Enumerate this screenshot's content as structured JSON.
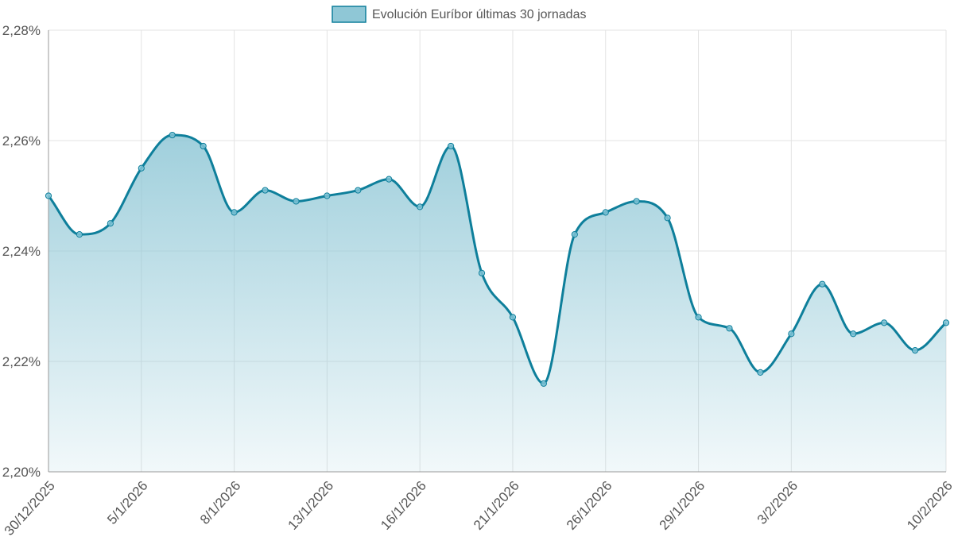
{
  "chart_data": {
    "type": "area",
    "legend": {
      "label": "Evolución Euríbor últimas 30 jornadas",
      "position": "top-center"
    },
    "x": [
      "30/12/2025",
      "",
      "",
      "5/1/2026",
      "",
      "",
      "8/1/2026",
      "",
      "",
      "13/1/2026",
      "",
      "",
      "16/1/2026",
      "",
      "",
      "21/1/2026",
      "",
      "",
      "26/1/2026",
      "",
      "",
      "29/1/2026",
      "",
      "",
      "3/2/2026",
      "",
      "",
      "",
      "",
      "10/2/2026"
    ],
    "x_tick_labels": [
      "30/12/2025",
      "5/1/2026",
      "8/1/2026",
      "13/1/2026",
      "16/1/2026",
      "21/1/2026",
      "26/1/2026",
      "29/1/2026",
      "3/2/2026",
      "10/2/2026"
    ],
    "series": [
      {
        "name": "Evolución Euríbor últimas 30 jornadas",
        "values": [
          2.25,
          2.243,
          2.245,
          2.255,
          2.261,
          2.259,
          2.247,
          2.251,
          2.249,
          2.25,
          2.251,
          2.253,
          2.248,
          2.259,
          2.236,
          2.228,
          2.216,
          2.243,
          2.247,
          2.249,
          2.246,
          2.228,
          2.226,
          2.218,
          2.225,
          2.234,
          2.225,
          2.227,
          2.222,
          2.227
        ]
      }
    ],
    "ylim": [
      2.2,
      2.28
    ],
    "y_ticks": [
      2.2,
      2.22,
      2.24,
      2.26,
      2.28
    ],
    "y_tick_labels": [
      "2,20%",
      "2,22%",
      "2,24%",
      "2,26%",
      "2,28%"
    ],
    "grid": true,
    "colors": {
      "line": "#0e7f9b",
      "fill_top": "#8fc7d6",
      "point_fill": "#7fc3d6",
      "grid": "#e3e3e3",
      "axis": "#999999"
    }
  }
}
